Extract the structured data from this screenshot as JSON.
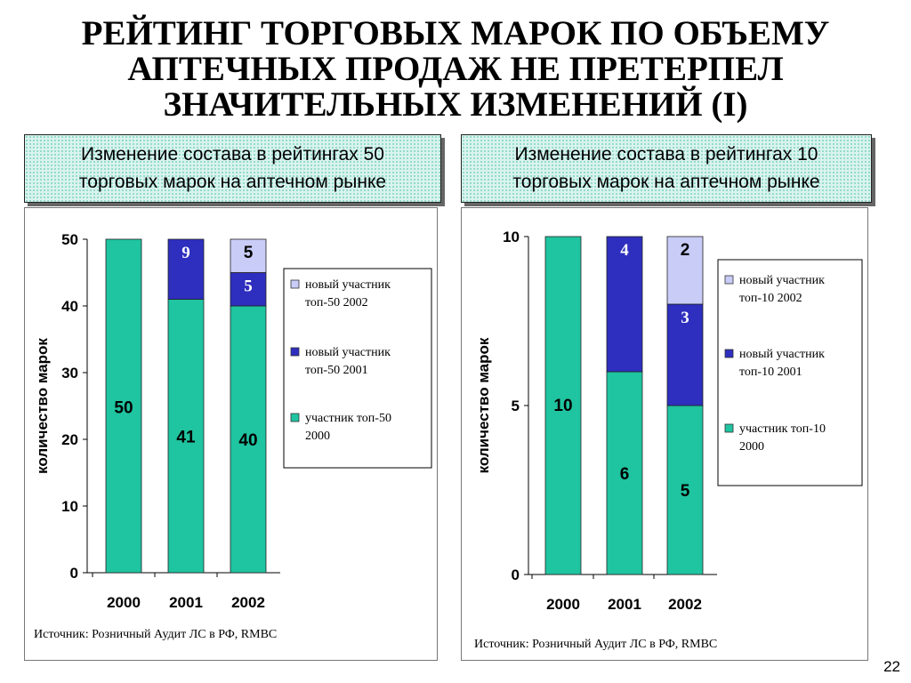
{
  "slide": {
    "title_line1": "РЕЙТИНГ ТОРГОВЫХ МАРОК ПО ОБЪЕМУ",
    "title_line2": "АПТЕЧНЫХ ПРОДАЖ НЕ ПРЕТЕРПЕЛ",
    "title_line3": "ЗНАЧИТЕЛЬНЫХ ИЗМЕНЕНИЙ (I)",
    "page_number": "22"
  },
  "left": {
    "header_line1": "Изменение состава в рейтингах 50",
    "header_line2": "торговых марок на аптечном рынке",
    "source": "Источник: Розничный Аудит ЛС в РФ, RMBC"
  },
  "right": {
    "header_line1": "Изменение состава в рейтингах 10",
    "header_line2": "торговых марок на аптечном рынке",
    "source": "Источник: Розничный Аудит ЛС в РФ, RMBC"
  },
  "chart_data": [
    {
      "type": "bar",
      "stacked": true,
      "ylabel": "количество марок",
      "ylim": [
        0,
        50
      ],
      "yticks": [
        0,
        10,
        20,
        30,
        40,
        50
      ],
      "categories": [
        "2000",
        "2001",
        "2002"
      ],
      "series": [
        {
          "name": "участник топ-50 2000",
          "values": [
            50,
            41,
            40
          ],
          "labels": [
            "50",
            "41",
            "40"
          ],
          "color": "#1fc4a0"
        },
        {
          "name": "новый участник топ-50 2001",
          "values": [
            0,
            9,
            5
          ],
          "labels": [
            "",
            "9",
            "5"
          ],
          "color": "#2e2ebf"
        },
        {
          "name": "новый участник топ-50 2002",
          "values": [
            0,
            0,
            5
          ],
          "labels": [
            "",
            "",
            "5"
          ],
          "color": "#c8ccf7"
        }
      ],
      "legend": [
        {
          "line1": "новый участник",
          "line2": "топ-50 2002",
          "color": "#c8ccf7"
        },
        {
          "line1": "новый участник",
          "line2": "топ-50 2001",
          "color": "#2e2ebf"
        },
        {
          "line1": "участник топ-50",
          "line2": "2000",
          "color": "#1fc4a0"
        }
      ],
      "legend_position": "right"
    },
    {
      "type": "bar",
      "stacked": true,
      "ylabel": "количество марок",
      "ylim": [
        0,
        10
      ],
      "yticks": [
        0,
        5,
        10
      ],
      "categories": [
        "2000",
        "2001",
        "2002"
      ],
      "series": [
        {
          "name": "участник топ-10 2000",
          "values": [
            10,
            6,
            5
          ],
          "labels": [
            "10",
            "6",
            "5"
          ],
          "color": "#1fc4a0"
        },
        {
          "name": "новый участник топ-10 2001",
          "values": [
            0,
            4,
            3
          ],
          "labels": [
            "",
            "4",
            "3"
          ],
          "color": "#2e2ebf"
        },
        {
          "name": "новый участник топ-10 2002",
          "values": [
            0,
            0,
            2
          ],
          "labels": [
            "",
            "",
            "2"
          ],
          "color": "#c8ccf7"
        }
      ],
      "legend": [
        {
          "line1": "новый участник",
          "line2": "топ-10 2002",
          "color": "#c8ccf7"
        },
        {
          "line1": "новый участник",
          "line2": "топ-10 2001",
          "color": "#2e2ebf"
        },
        {
          "line1": "участник топ-10",
          "line2": "2000",
          "color": "#1fc4a0"
        }
      ],
      "legend_position": "right"
    }
  ]
}
